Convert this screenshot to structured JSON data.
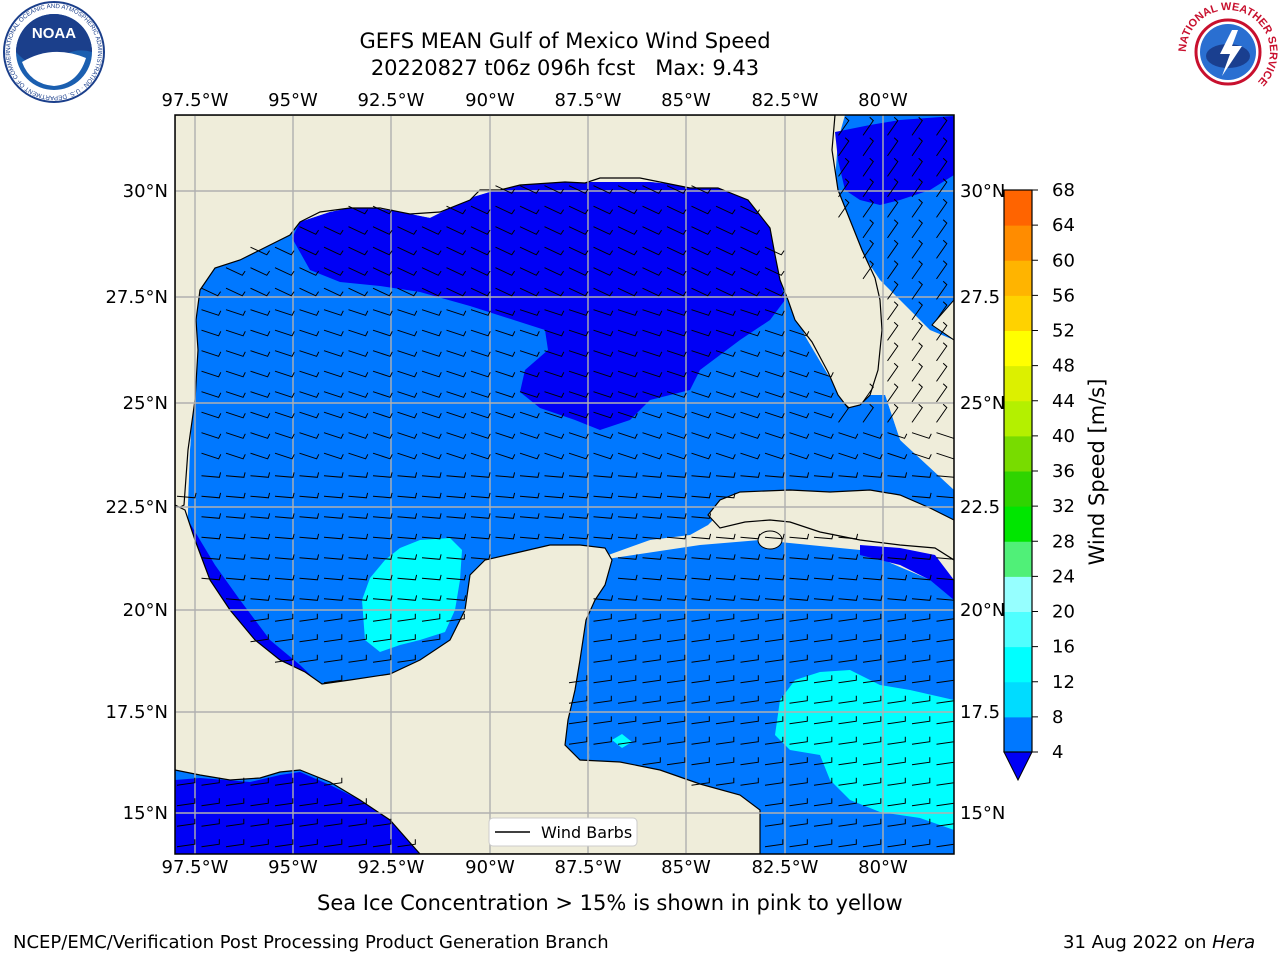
{
  "title": {
    "line1": "GEFS MEAN Gulf of Mexico Wind Speed",
    "line2": "20220827 t06z 096h fcst   Max: 9.43"
  },
  "axes": {
    "lon_labels": [
      "97.5°W",
      "95°W",
      "92.5°W",
      "90°W",
      "87.5°W",
      "85°W",
      "82.5°W",
      "80°W"
    ],
    "lat_labels_left": [
      "30°N",
      "27.5°N",
      "25°N",
      "22.5°N",
      "20°N",
      "17.5°N",
      "15°N"
    ],
    "lat_labels_right": [
      "30°N",
      "27.5",
      "25°N",
      "22.5",
      "20°N",
      "17.5",
      "15°N"
    ]
  },
  "colorbar": {
    "label": "Wind Speed [m/s]",
    "ticks": [
      "4",
      "8",
      "12",
      "16",
      "20",
      "24",
      "28",
      "32",
      "36",
      "40",
      "44",
      "48",
      "52",
      "56",
      "60",
      "64",
      "68"
    ],
    "colors": [
      "#0000f5",
      "#0078ff",
      "#00dcff",
      "#00ffff",
      "#50ffff",
      "#96ffff",
      "#50f078",
      "#00e600",
      "#2fd400",
      "#78dc00",
      "#b4f000",
      "#dcf000",
      "#ffff00",
      "#ffd200",
      "#ffb400",
      "#ff8c00",
      "#ff6400",
      "#ff3200",
      "#ff0000"
    ]
  },
  "map_colors": {
    "land": "#efedda",
    "ocean_4_8": "#0078ff",
    "ocean_below_4": "#0000f5",
    "ocean_8_12": "#00ffff",
    "ocean_12_16": "#50ffff"
  },
  "legend": {
    "label": "Wind Barbs"
  },
  "caption": "Sea Ice Concentration > 15% is shown in pink to yellow",
  "footer": {
    "left": "NCEP/EMC/Verification Post Processing Product Generation Branch",
    "right_date": "31 Aug 2022 on ",
    "right_machine": "Hera"
  },
  "logos": {
    "noaa_text": "NOAA",
    "noaa_ring": "NATIONAL OCEANIC AND ATMOSPHERIC ADMINISTRATION · U.S. DEPARTMENT OF COMMERCE",
    "nws_ring": "NATIONAL WEATHER SERVICE"
  }
}
